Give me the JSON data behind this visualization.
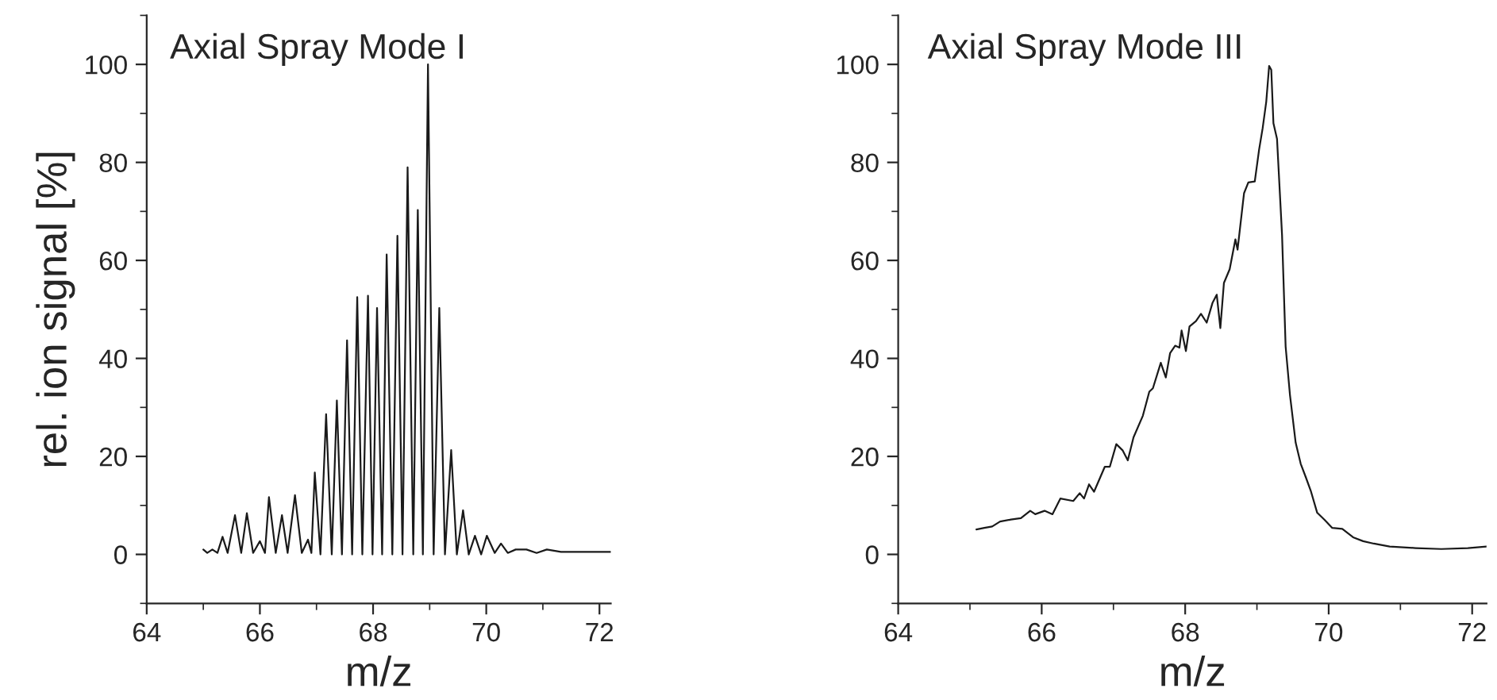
{
  "chart_data": [
    {
      "type": "line",
      "title": "Axial Spray Mode I",
      "xlabel": "m/z",
      "ylabel": "rel. ion signal [%]",
      "xlim": [
        64,
        72.2
      ],
      "ylim": [
        -10,
        110
      ],
      "xticks": [
        64,
        66,
        68,
        70,
        72
      ],
      "yticks": [
        0,
        20,
        40,
        60,
        80,
        100
      ],
      "grid": false,
      "legend": false,
      "marker": "none",
      "line_style": "solid",
      "series": [
        {
          "color": "#1a1a1a",
          "x": [
            65.0,
            65.07,
            65.16,
            65.25,
            65.34,
            65.43,
            65.56,
            65.67,
            65.77,
            65.88,
            66.0,
            66.09,
            66.16,
            66.28,
            66.39,
            66.49,
            66.62,
            66.74,
            66.85,
            66.91,
            66.97,
            67.07,
            67.17,
            67.27,
            67.36,
            67.45,
            67.54,
            67.63,
            67.72,
            67.81,
            67.91,
            67.99,
            68.07,
            68.16,
            68.24,
            68.34,
            68.43,
            68.52,
            68.61,
            68.71,
            68.79,
            68.88,
            68.97,
            69.07,
            69.17,
            69.27,
            69.38,
            69.48,
            69.59,
            69.69,
            69.8,
            69.91,
            70.01,
            70.15,
            70.26,
            70.38,
            70.52,
            70.71,
            70.89,
            71.07,
            71.32,
            72.2
          ],
          "values": [
            1,
            0.3,
            1,
            0.3,
            3.6,
            0.3,
            8,
            0.3,
            8.4,
            0.3,
            2.7,
            0.3,
            11.7,
            0.3,
            8,
            0.3,
            12.1,
            0.3,
            3,
            0.3,
            16.7,
            0,
            28.6,
            0,
            31.4,
            0,
            43.7,
            0,
            52.5,
            0,
            52.8,
            0,
            50.3,
            0,
            61.2,
            0,
            65,
            0,
            79,
            0,
            70.3,
            0,
            100,
            0,
            50.3,
            0,
            21.3,
            0,
            9,
            0,
            3.8,
            0,
            3.8,
            0.3,
            2.2,
            0.3,
            1,
            1,
            0.3,
            1,
            0.5,
            0.5
          ]
        }
      ]
    },
    {
      "type": "line",
      "title": "Axial Spray Mode III",
      "xlabel": "m/z",
      "xlim": [
        64,
        72.2
      ],
      "ylim": [
        -10,
        110
      ],
      "xticks": [
        64,
        66,
        68,
        70,
        72
      ],
      "yticks": [
        0,
        20,
        40,
        60,
        80,
        100
      ],
      "grid": false,
      "legend": false,
      "marker": "none",
      "line_style": "solid",
      "series": [
        {
          "color": "#1a1a1a",
          "x": [
            65.09,
            65.2,
            65.31,
            65.42,
            65.57,
            65.71,
            65.84,
            65.91,
            66.04,
            66.15,
            66.26,
            66.44,
            66.53,
            66.59,
            66.66,
            66.73,
            66.88,
            66.95,
            67.04,
            67.13,
            67.2,
            67.28,
            67.41,
            67.5,
            67.55,
            67.66,
            67.73,
            67.79,
            67.86,
            67.92,
            67.95,
            68.01,
            68.06,
            68.15,
            68.22,
            68.3,
            68.38,
            68.44,
            68.49,
            68.54,
            68.62,
            68.7,
            68.73,
            68.82,
            68.88,
            68.97,
            69.03,
            69.08,
            69.13,
            69.17,
            69.2,
            69.23,
            69.28,
            69.35,
            69.4,
            69.46,
            69.54,
            69.61,
            69.68,
            69.75,
            69.84,
            69.94,
            70.05,
            70.19,
            70.34,
            70.48,
            70.63,
            70.85,
            71.21,
            71.57,
            71.94,
            72.2
          ],
          "values": [
            5.1,
            5.4,
            5.7,
            6.7,
            7.1,
            7.4,
            8.9,
            8.2,
            8.9,
            8.2,
            11.4,
            10.9,
            12.5,
            11.4,
            14.3,
            12.8,
            17.9,
            17.9,
            22.5,
            21.2,
            19.2,
            23.9,
            28.3,
            33.2,
            33.9,
            39.1,
            36.1,
            41.1,
            42.6,
            42.2,
            45.7,
            41.5,
            46.5,
            47.6,
            49.1,
            47.3,
            51.3,
            53.0,
            46.2,
            55.4,
            58.2,
            64.3,
            62.2,
            73.7,
            75.9,
            76.1,
            82.6,
            87.0,
            92.4,
            99.7,
            98.9,
            88.0,
            84.8,
            65.2,
            42.4,
            32.6,
            22.8,
            18.5,
            15.8,
            13.0,
            8.5,
            7.1,
            5.4,
            5.2,
            3.5,
            2.7,
            2.2,
            1.6,
            1.3,
            1.1,
            1.3,
            1.6
          ]
        }
      ]
    }
  ]
}
